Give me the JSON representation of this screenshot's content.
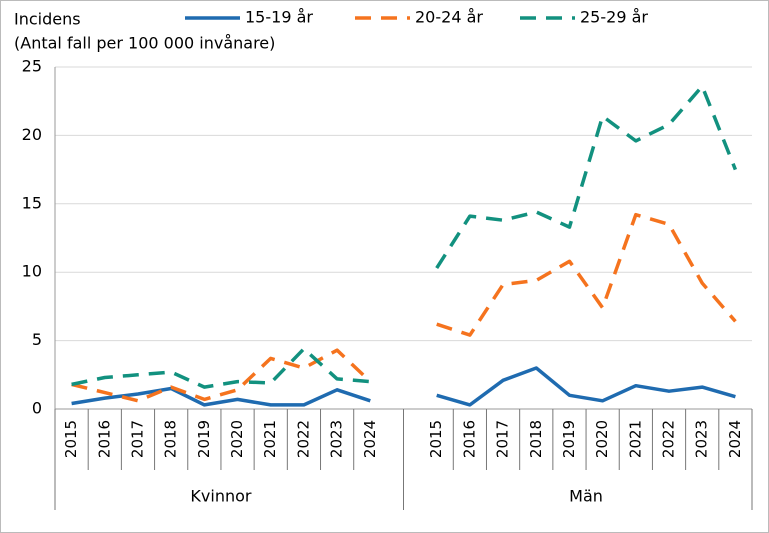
{
  "chart_data": {
    "type": "line",
    "ylabel": "Incidens",
    "ysubtitle": "(Antal fall per 100 000 invånare)",
    "categories": [
      "2015",
      "2016",
      "2017",
      "2018",
      "2019",
      "2020",
      "2021",
      "2022",
      "2023",
      "2024",
      null,
      "2015",
      "2016",
      "2017",
      "2018",
      "2019",
      "2020",
      "2021",
      "2022",
      "2023",
      "2024"
    ],
    "groups": [
      "Kvinnor",
      "Män"
    ],
    "series": [
      {
        "name": "15-19 år",
        "color": "#1f6bb0",
        "dashed": false,
        "values": [
          0.4,
          0.8,
          1.1,
          1.5,
          0.3,
          0.7,
          0.3,
          0.3,
          1.4,
          0.6,
          null,
          1.0,
          0.3,
          2.1,
          3.0,
          1.0,
          0.6,
          1.7,
          1.3,
          1.6,
          0.9
        ]
      },
      {
        "name": "20-24 år",
        "color": "#f5731e",
        "dashed": true,
        "values": [
          1.8,
          1.2,
          0.6,
          1.6,
          0.7,
          1.4,
          3.7,
          3.0,
          4.3,
          2.0,
          null,
          6.2,
          5.4,
          9.1,
          9.4,
          10.8,
          7.4,
          14.2,
          13.5,
          9.2,
          6.4
        ]
      },
      {
        "name": "25-29 år",
        "color": "#12917f",
        "dashed": true,
        "values": [
          1.8,
          2.3,
          2.5,
          2.7,
          1.6,
          2.0,
          1.9,
          4.4,
          2.2,
          2.0,
          null,
          10.3,
          14.1,
          13.8,
          14.4,
          13.3,
          21.4,
          19.6,
          20.8,
          23.6,
          17.5
        ]
      }
    ],
    "ylim": [
      0,
      25
    ],
    "yticks": [
      0,
      5,
      10,
      15,
      20,
      25
    ],
    "grid": true,
    "legend": "top"
  }
}
